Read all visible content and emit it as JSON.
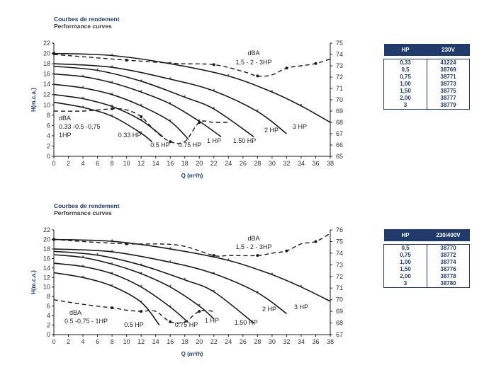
{
  "chart_data": [
    {
      "type": "line",
      "title": "Courbes de rendement",
      "subtitle": "Performance curves",
      "xlabel": "Q (m³/h)",
      "ylabel": "H(m.c.a.)",
      "xlim": [
        0,
        38
      ],
      "ylim": [
        0,
        22
      ],
      "y2lim": [
        65,
        75
      ],
      "xticks": [
        "0",
        "2",
        "4",
        "6",
        "8",
        "10",
        "12",
        "14",
        "16",
        "18",
        "20",
        "22",
        "24",
        "26",
        "28",
        "30",
        "32",
        "34",
        "36",
        "38"
      ],
      "yticks": [
        "0",
        "2",
        "4",
        "6",
        "8",
        "10",
        "12",
        "14",
        "16",
        "18",
        "20",
        "22"
      ],
      "y2ticks": [
        "65",
        "66",
        "67",
        "68",
        "69",
        "70",
        "71",
        "72",
        "73",
        "74",
        "75"
      ],
      "grid": false,
      "series": [
        {
          "name": "0.33 HP",
          "x": [
            0,
            4,
            8,
            12,
            13.5
          ],
          "y": [
            10.5,
            9.5,
            7.8,
            4.5,
            2.8
          ]
        },
        {
          "name": "0.5 HP",
          "x": [
            0,
            4,
            8,
            12,
            15
          ],
          "y": [
            12,
            11.2,
            9.7,
            7,
            3.8
          ]
        },
        {
          "name": "0.75 HP",
          "x": [
            0,
            4,
            8,
            12,
            16,
            18.5
          ],
          "y": [
            14,
            13.3,
            12,
            9.8,
            6.8,
            3.3
          ]
        },
        {
          "name": "1 HP",
          "x": [
            0,
            4,
            8,
            12,
            16,
            20,
            23
          ],
          "y": [
            16,
            15.5,
            14.3,
            12.5,
            10.2,
            6.8,
            3.8
          ]
        },
        {
          "name": "1.50 HP",
          "x": [
            0,
            6,
            12,
            18,
            22,
            27.5
          ],
          "y": [
            17.5,
            16.7,
            14.6,
            11.5,
            9.2,
            3.8
          ]
        },
        {
          "name": "2 HP",
          "x": [
            0,
            8,
            16,
            22,
            28,
            32
          ],
          "y": [
            18,
            17.3,
            15,
            12.7,
            8.7,
            4.4
          ]
        },
        {
          "name": "3 HP",
          "x": [
            0,
            8,
            16,
            24,
            30,
            34,
            38
          ],
          "y": [
            20,
            19.6,
            18,
            15.6,
            12.5,
            9.8,
            6.6
          ]
        },
        {
          "name": "dBA 1,5 - 2 - 3HP",
          "axis": "y2",
          "x": [
            0,
            4,
            10,
            17,
            22,
            26,
            28,
            30,
            32,
            34,
            36,
            38
          ],
          "y": [
            74,
            73.8,
            73.5,
            73.2,
            73.1,
            72.5,
            72.1,
            72.2,
            72.8,
            73,
            73.2,
            73.6
          ]
        },
        {
          "name": "dBA 0.33 -0.5 -0,75 1HP",
          "axis": "y2",
          "x": [
            0,
            4,
            8,
            10,
            12,
            14,
            16,
            18,
            20,
            22,
            24
          ],
          "y": [
            69,
            69,
            69.2,
            69.1,
            68.5,
            67.2,
            66.3,
            66.3,
            68,
            68,
            68
          ]
        }
      ],
      "curve_labels": [
        "0.33 HP",
        "0.5 HP",
        "0.75 HP",
        "1 HP",
        "1.50 HP",
        "2 HP",
        "3 HP"
      ],
      "dba_labels": [
        "dBA",
        "1,5 - 2 - 3HP",
        "dBA",
        "0.33 -0.5 -0,75",
        "1HP"
      ]
    },
    {
      "type": "line",
      "title": "Courbes de rendement",
      "subtitle": "Performance curves",
      "xlabel": "Q (m³/h)",
      "ylabel": "H(m.c.a.)",
      "xlim": [
        0,
        38
      ],
      "ylim": [
        0,
        22
      ],
      "y2lim": [
        67,
        76
      ],
      "xticks": [
        "0",
        "2",
        "4",
        "6",
        "8",
        "10",
        "12",
        "14",
        "16",
        "18",
        "20",
        "22",
        "24",
        "26",
        "28",
        "30",
        "32",
        "34",
        "36",
        "38"
      ],
      "yticks": [
        "0",
        "2",
        "4",
        "6",
        "8",
        "10",
        "12",
        "14",
        "16",
        "18",
        "20",
        "22"
      ],
      "y2ticks": [
        "67",
        "68",
        "69",
        "70",
        "71",
        "72",
        "73",
        "74",
        "75",
        "76"
      ],
      "grid": false,
      "series": [
        {
          "name": "0.5 HP",
          "x": [
            0,
            4,
            8,
            12,
            14.5
          ],
          "y": [
            13,
            12,
            10.2,
            6.8,
            2
          ]
        },
        {
          "name": "0.75 HP",
          "x": [
            0,
            4,
            8,
            12,
            16,
            18.5
          ],
          "y": [
            15,
            14.3,
            12.8,
            10,
            5.8,
            2.5
          ]
        },
        {
          "name": "1 HP",
          "x": [
            0,
            4,
            8,
            12,
            16,
            20,
            22
          ],
          "y": [
            16.8,
            16.2,
            14.8,
            12.8,
            10,
            6,
            3.3
          ]
        },
        {
          "name": "1.50 HP",
          "x": [
            0,
            6,
            12,
            18,
            22,
            27.5
          ],
          "y": [
            17.5,
            16.7,
            14.6,
            11.5,
            9,
            2.4
          ]
        },
        {
          "name": "2 HP",
          "x": [
            0,
            8,
            16,
            22,
            28,
            32
          ],
          "y": [
            18,
            17.4,
            15.2,
            12.8,
            8.8,
            4.4
          ]
        },
        {
          "name": "3 HP",
          "x": [
            0,
            8,
            16,
            24,
            30,
            34,
            38
          ],
          "y": [
            20,
            19.6,
            18,
            15.6,
            12.6,
            10,
            7
          ]
        },
        {
          "name": "dBA 1,5 - 2 - 3HP",
          "axis": "y2",
          "x": [
            0,
            4,
            10,
            17,
            22,
            24,
            28,
            30,
            32,
            34,
            36,
            38
          ],
          "y": [
            75.2,
            75,
            74.8,
            74.7,
            73.8,
            73.8,
            73.8,
            74,
            74.2,
            74.8,
            75,
            75.7
          ]
        },
        {
          "name": "dBA 0.5 -0,75 - 1HP",
          "axis": "y2",
          "x": [
            0,
            4,
            8,
            10,
            12,
            14,
            16,
            18,
            20,
            22
          ],
          "y": [
            70,
            69.6,
            69.3,
            69.1,
            69,
            69,
            68.1,
            68.1,
            69,
            69
          ]
        }
      ],
      "curve_labels": [
        "0.5 HP",
        "0.75 HP",
        "1 HP",
        "1.50 HP",
        "2 HP",
        "3 HP"
      ],
      "dba_labels": [
        "dBA",
        "1,5 - 2 - 3HP",
        "dBA",
        "0.5 -0,75 - 1HP"
      ]
    }
  ],
  "tables": [
    {
      "headers": [
        "HP",
        "230V"
      ],
      "rows": [
        [
          "0,33",
          "41224"
        ],
        [
          "0,5",
          "38769"
        ],
        [
          "0,75",
          "38771"
        ],
        [
          "1,00",
          "38773"
        ],
        [
          "1,50",
          "38775"
        ],
        [
          "2,00",
          "38777"
        ],
        [
          "3",
          "38779"
        ]
      ]
    },
    {
      "headers": [
        "HP",
        "230/400V"
      ],
      "rows": [
        [
          "0,5",
          "38770"
        ],
        [
          "0,75",
          "38772"
        ],
        [
          "1,00",
          "38774"
        ],
        [
          "1,50",
          "38776"
        ],
        [
          "2,00",
          "38778"
        ],
        [
          "3",
          "38780"
        ]
      ]
    }
  ],
  "colors": {
    "brand": "#1f3a6b",
    "curve": "#1a1a1a"
  }
}
